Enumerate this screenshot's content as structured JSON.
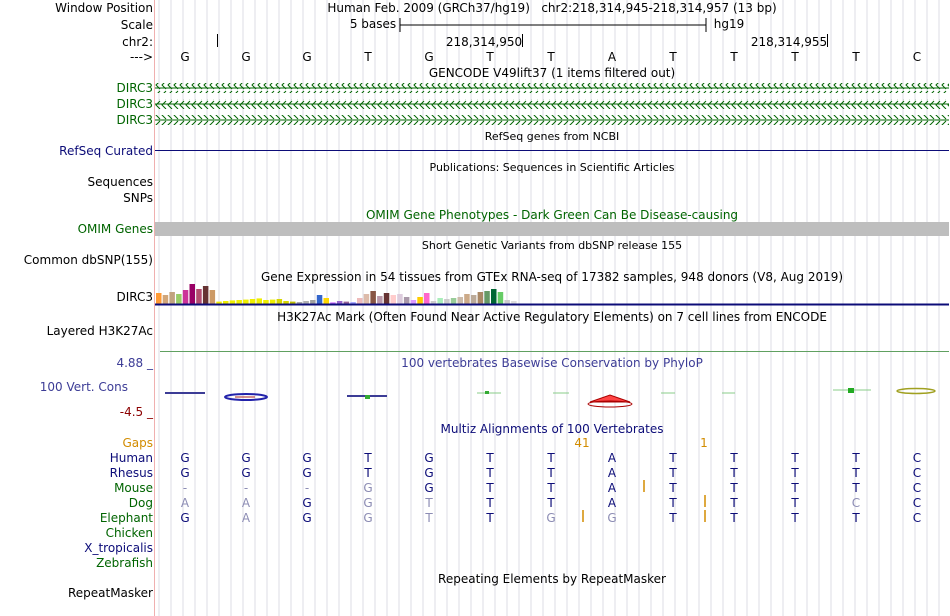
{
  "colors": {
    "gencode": "#006400",
    "refseq": "#0c0c78",
    "omim_bar": "#bebebe",
    "h3k27ac": "#60a060",
    "cons_label": "#3c3c96",
    "cons_low": "#8b0000",
    "multiz_title": "#0c0c78",
    "gaps": "#d28c00",
    "separator": "#f0b0b0",
    "grid": "#dcdce6"
  },
  "header": {
    "window_position_label": "Window Position",
    "window_position_value": "Human Feb. 2009 (GRCh37/hg19)   chr2:218,314,945-218,314,957 (13 bp)",
    "scale_label": "Scale",
    "scale_text": "5 bases",
    "scale_db": "hg19",
    "chrom_label": "chr2:",
    "coord1": "218,314,950",
    "coord2": "218,314,955",
    "strand_label": "--->"
  },
  "bases": [
    "G",
    "G",
    "G",
    "T",
    "G",
    "T",
    "T",
    "A",
    "T",
    "T",
    "T",
    "T",
    "C"
  ],
  "tracks": {
    "gencode_title": "GENCODE V49lift37 (1 items filtered out)",
    "gencode_items": [
      "DIRC3",
      "DIRC3",
      "DIRC3"
    ],
    "refseq_title": "RefSeq genes from NCBI",
    "refseq_label": "RefSeq Curated",
    "pubs_title": "Publications: Sequences in Scientific Articles",
    "pubs_label1": "Sequences",
    "pubs_label2": "SNPs",
    "omim_title": "OMIM Gene Phenotypes - Dark Green Can Be Disease-causing",
    "omim_label": "OMIM Genes",
    "dbsnp_title": "Short Genetic Variants from dbSNP release 155",
    "dbsnp_label": "Common dbSNP(155)",
    "gtex_title": "Gene Expression in 54 tissues from GTEx RNA-seq of 17382 samples, 948 donors (V8, Aug 2019)",
    "gtex_label": "DIRC3",
    "h3k_title": "H3K27Ac Mark (Often Found Near Active Regulatory Elements) on 7 cell lines from ENCODE",
    "h3k_label": "Layered H3K27Ac",
    "cons_title": "100 vertebrates Basewise Conservation by PhyloP",
    "cons_label": "100 Vert. Cons",
    "cons_max": "4.88 _",
    "cons_min": "-4.5 _",
    "multiz_title": "Multiz Alignments of 100 Vertebrates",
    "gaps_label": "Gaps",
    "gap1": "41",
    "gap2": "1",
    "repeat_title": "Repeating Elements by RepeatMasker",
    "repeat_label": "RepeatMasker"
  },
  "species": [
    {
      "name": "Human",
      "color": "#0c0c78",
      "bases": [
        "G",
        "G",
        "G",
        "T",
        "G",
        "T",
        "T",
        "A",
        "T",
        "T",
        "T",
        "T",
        "C"
      ],
      "faded": [
        0,
        0,
        0,
        0,
        0,
        0,
        0,
        0,
        0,
        0,
        0,
        0,
        0
      ]
    },
    {
      "name": "Rhesus",
      "color": "#0c0c78",
      "bases": [
        "G",
        "G",
        "G",
        "T",
        "G",
        "T",
        "T",
        "A",
        "T",
        "T",
        "T",
        "T",
        "C"
      ],
      "faded": [
        0,
        0,
        0,
        0,
        0,
        0,
        0,
        0,
        0,
        0,
        0,
        0,
        0
      ]
    },
    {
      "name": "Mouse",
      "color": "#006400",
      "bases": [
        "-",
        "-",
        "-",
        "G",
        "G",
        "T",
        "T",
        "A",
        "T",
        "T",
        "T",
        "T",
        "C"
      ],
      "faded": [
        1,
        1,
        1,
        1,
        0,
        0,
        0,
        0,
        0,
        0,
        0,
        0,
        0
      ]
    },
    {
      "name": "Dog",
      "color": "#006400",
      "bases": [
        "A",
        "A",
        "G",
        "G",
        "T",
        "T",
        "T",
        "A",
        "T",
        "T",
        "T",
        "C",
        "C"
      ],
      "faded": [
        1,
        1,
        0,
        1,
        1,
        0,
        0,
        0,
        0,
        0,
        0,
        1,
        0
      ]
    },
    {
      "name": "Elephant",
      "color": "#006400",
      "bases": [
        "G",
        "A",
        "G",
        "G",
        "T",
        "T",
        "G",
        "G",
        "T",
        "T",
        "T",
        "T",
        "C"
      ],
      "faded": [
        0,
        1,
        0,
        1,
        1,
        0,
        1,
        1,
        0,
        0,
        0,
        0,
        0
      ]
    },
    {
      "name": "Chicken",
      "color": "#006400",
      "bases": [],
      "faded": []
    },
    {
      "name": "X_tropicalis",
      "color": "#0c0c78",
      "bases": [],
      "faded": []
    },
    {
      "name": "Zebrafish",
      "color": "#006400",
      "bases": [],
      "faded": []
    }
  ],
  "gtex_values": [
    {
      "v": 0.55,
      "c": "#ff9933"
    },
    {
      "v": 0.45,
      "c": "#d2a679"
    },
    {
      "v": 0.6,
      "c": "#c1a37f"
    },
    {
      "v": 0.5,
      "c": "#99cc66"
    },
    {
      "v": 0.7,
      "c": "#cc3399"
    },
    {
      "v": 1.0,
      "c": "#990066"
    },
    {
      "v": 0.75,
      "c": "#b34d6f"
    },
    {
      "v": 0.9,
      "c": "#663333"
    },
    {
      "v": 0.7,
      "c": "#cc9966"
    },
    {
      "v": 0.12,
      "c": "#eeee00"
    },
    {
      "v": 0.15,
      "c": "#eeee00"
    },
    {
      "v": 0.18,
      "c": "#eeee00"
    },
    {
      "v": 0.2,
      "c": "#eeee00"
    },
    {
      "v": 0.22,
      "c": "#eeee00"
    },
    {
      "v": 0.25,
      "c": "#eeee00"
    },
    {
      "v": 0.28,
      "c": "#eeee00"
    },
    {
      "v": 0.2,
      "c": "#eeee00"
    },
    {
      "v": 0.22,
      "c": "#eeee00"
    },
    {
      "v": 0.25,
      "c": "#d6d600"
    },
    {
      "v": 0.15,
      "c": "#d6d600"
    },
    {
      "v": 0.12,
      "c": "#bbbb00"
    },
    {
      "v": 0.1,
      "c": "#aaaaaa"
    },
    {
      "v": 0.15,
      "c": "#b0b0b0"
    },
    {
      "v": 0.2,
      "c": "#a0a0a0"
    },
    {
      "v": 0.45,
      "c": "#3366cc"
    },
    {
      "v": 0.3,
      "c": "#ffd700"
    },
    {
      "v": 0.08,
      "c": "#cc66ff"
    },
    {
      "v": 0.15,
      "c": "#9966cc"
    },
    {
      "v": 0.12,
      "c": "#996699"
    },
    {
      "v": 0.1,
      "c": "#aaaaff"
    },
    {
      "v": 0.3,
      "c": "#eebbbb"
    },
    {
      "v": 0.5,
      "c": "#ddbbaa"
    },
    {
      "v": 0.65,
      "c": "#885544"
    },
    {
      "v": 0.4,
      "c": "#bb99aa"
    },
    {
      "v": 0.55,
      "c": "#663333"
    },
    {
      "v": 0.45,
      "c": "#ffcccc"
    },
    {
      "v": 0.5,
      "c": "#ddccdd"
    },
    {
      "v": 0.35,
      "c": "#aa99aa"
    },
    {
      "v": 0.2,
      "c": "#dd99ff"
    },
    {
      "v": 0.35,
      "c": "#ffcc00"
    },
    {
      "v": 0.55,
      "c": "#ff66cc"
    },
    {
      "v": 0.15,
      "c": "#cccccc"
    },
    {
      "v": 0.3,
      "c": "#aaeebb"
    },
    {
      "v": 0.25,
      "c": "#cccccc"
    },
    {
      "v": 0.3,
      "c": "#99cc99"
    },
    {
      "v": 0.35,
      "c": "#ccbbaa"
    },
    {
      "v": 0.5,
      "c": "#ccaa88"
    },
    {
      "v": 0.45,
      "c": "#bbaa99"
    },
    {
      "v": 0.6,
      "c": "#aa8866"
    },
    {
      "v": 0.65,
      "c": "#669966"
    },
    {
      "v": 0.75,
      "c": "#006633"
    },
    {
      "v": 0.6,
      "c": "#66cc66"
    },
    {
      "v": 0.2,
      "c": "#cccccc"
    },
    {
      "v": 0.15,
      "c": "#dddddd"
    }
  ]
}
